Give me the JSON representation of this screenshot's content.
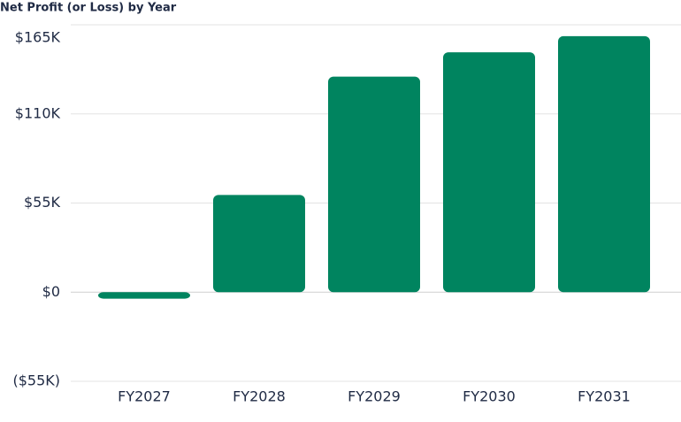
{
  "chart_data": {
    "type": "bar",
    "title": "Net Profit (or Loss) by Year",
    "categories": [
      "FY2027",
      "FY2028",
      "FY2029",
      "FY2030",
      "FY2031"
    ],
    "values": [
      -4000,
      60000,
      133000,
      148000,
      158000
    ],
    "color": "#00845f",
    "ylim": [
      -55000,
      165000
    ],
    "yticks": [
      {
        "value": -55000,
        "label": "($55K)"
      },
      {
        "value": 0,
        "label": "$0"
      },
      {
        "value": 55000,
        "label": "$55K"
      },
      {
        "value": 110000,
        "label": "$110K"
      },
      {
        "value": 165000,
        "label": "$165K"
      }
    ],
    "grid": true
  }
}
